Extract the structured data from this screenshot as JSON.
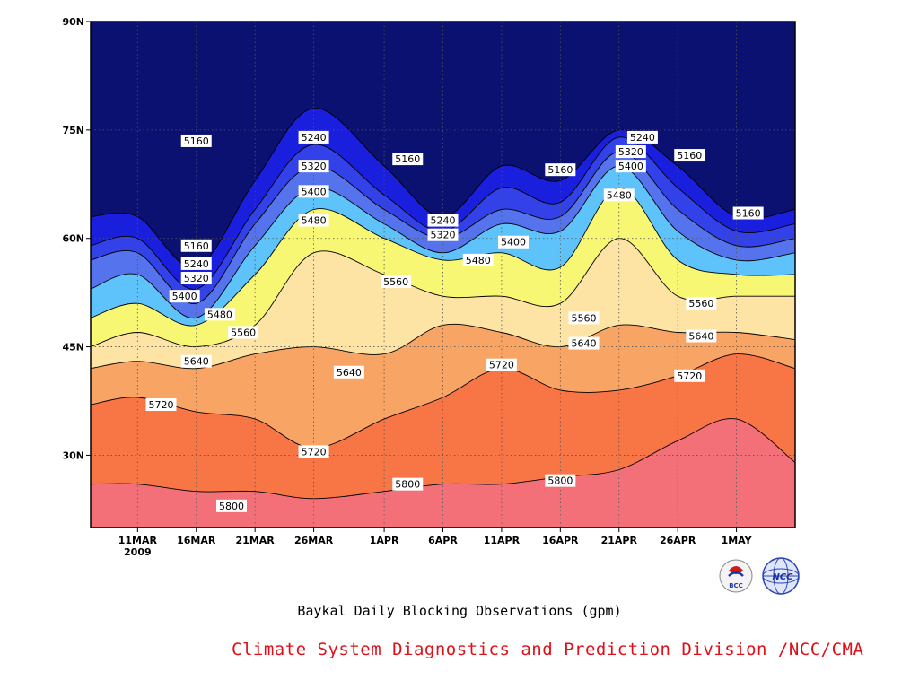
{
  "chart_data": {
    "type": "heatmap",
    "subtype": "filled-contour",
    "title": "Baykal Daily Blocking Observations (gpm)",
    "xaxis": {
      "kind": "date",
      "year": "2009",
      "start": "2009-03-07",
      "end": "2009-05-06",
      "ticks": [
        "11MAR",
        "16MAR",
        "21MAR",
        "26MAR",
        "1APR",
        "6APR",
        "11APR",
        "16APR",
        "21APR",
        "26APR",
        "1MAY"
      ]
    },
    "yaxis": {
      "range": [
        20,
        90
      ],
      "ticks": [
        "30N",
        "45N",
        "60N",
        "75N",
        "90N"
      ]
    },
    "grid": "dotted",
    "levels": [
      5160,
      5240,
      5320,
      5400,
      5480,
      5560,
      5640,
      5720,
      5800
    ],
    "colors": [
      "#0b1170",
      "#1a1fde",
      "#3342e8",
      "#5573ec",
      "#5fc3fb",
      "#f7f774",
      "#fde3a4",
      "#f8a465",
      "#f87546",
      "#f47079"
    ],
    "contour_latitudes": {
      "dates": [
        "7MAR",
        "11MAR",
        "16MAR",
        "21MAR",
        "26MAR",
        "1APR",
        "6APR",
        "11APR",
        "16APR",
        "21APR",
        "26APR",
        "1MAY",
        "6MAY"
      ],
      "5160": [
        63,
        63,
        56,
        68,
        78,
        70,
        63,
        70,
        68,
        75,
        70,
        63,
        64
      ],
      "5240": [
        59,
        60,
        53,
        64,
        73,
        66,
        61,
        67,
        65,
        74,
        67,
        61,
        62
      ],
      "5320": [
        57,
        58,
        51,
        62,
        70,
        64,
        60,
        64,
        63,
        72,
        64,
        59,
        60
      ],
      "5400": [
        53,
        55,
        49,
        59,
        67,
        62,
        58,
        62,
        61,
        70,
        61,
        57,
        58
      ],
      "5480": [
        49,
        51,
        48,
        55,
        64,
        60,
        57,
        58,
        56,
        67,
        57,
        55,
        55
      ],
      "5560": [
        45,
        47,
        45,
        48,
        58,
        55,
        52,
        52,
        51,
        60,
        52,
        52,
        52
      ],
      "5640": [
        42,
        43,
        42,
        44,
        45,
        44,
        48,
        47,
        45,
        48,
        47,
        47,
        46
      ],
      "5720": [
        37,
        38,
        36,
        35,
        31,
        35,
        38,
        42,
        39,
        39,
        41,
        44,
        42
      ],
      "5800": [
        26,
        26,
        25,
        25,
        24,
        25,
        26,
        26,
        27,
        28,
        32,
        35,
        29
      ]
    },
    "labels": [
      {
        "text": "5160",
        "date": "16MAR",
        "lat": 73.5
      },
      {
        "text": "5240",
        "date": "26MAR",
        "lat": 74
      },
      {
        "text": "5320",
        "date": "26MAR",
        "lat": 70
      },
      {
        "text": "5400",
        "date": "26MAR",
        "lat": 66.5
      },
      {
        "text": "5480",
        "date": "26MAR",
        "lat": 62.5
      },
      {
        "text": "5160",
        "date": "3APR",
        "lat": 71
      },
      {
        "text": "5240",
        "date": "6APR",
        "lat": 62.5
      },
      {
        "text": "5320",
        "date": "6APR",
        "lat": 60.5
      },
      {
        "text": "5480",
        "date": "9APR",
        "lat": 57
      },
      {
        "text": "5400",
        "date": "12APR",
        "lat": 59.5
      },
      {
        "text": "5160",
        "date": "16APR",
        "lat": 69.5
      },
      {
        "text": "5560",
        "date": "2APR",
        "lat": 54
      },
      {
        "text": "5640",
        "date": "29MAR",
        "lat": 41.5
      },
      {
        "text": "5720",
        "date": "11APR",
        "lat": 42.5
      },
      {
        "text": "5720",
        "date": "26MAR",
        "lat": 30.5
      },
      {
        "text": "5160",
        "date": "16MAR",
        "lat": 59
      },
      {
        "text": "5240",
        "date": "16MAR",
        "lat": 56.5
      },
      {
        "text": "5320",
        "date": "16MAR",
        "lat": 54.5
      },
      {
        "text": "5400",
        "date": "15MAR",
        "lat": 52
      },
      {
        "text": "5480",
        "date": "18MAR",
        "lat": 49.5
      },
      {
        "text": "5560",
        "date": "20MAR",
        "lat": 47
      },
      {
        "text": "5640",
        "date": "16MAR",
        "lat": 43
      },
      {
        "text": "5720",
        "date": "13MAR",
        "lat": 37
      },
      {
        "text": "5800",
        "date": "19MAR",
        "lat": 23
      },
      {
        "text": "5800",
        "date": "3APR",
        "lat": 26
      },
      {
        "text": "5800",
        "date": "16APR",
        "lat": 26.5
      },
      {
        "text": "5560",
        "date": "18APR",
        "lat": 49
      },
      {
        "text": "5640",
        "date": "18APR",
        "lat": 45.5
      },
      {
        "text": "5480",
        "date": "21APR",
        "lat": 66
      },
      {
        "text": "5400",
        "date": "22APR",
        "lat": 70
      },
      {
        "text": "5320",
        "date": "22APR",
        "lat": 72
      },
      {
        "text": "5240",
        "date": "23APR",
        "lat": 74
      },
      {
        "text": "5160",
        "date": "27APR",
        "lat": 71.5
      },
      {
        "text": "5560",
        "date": "28APR",
        "lat": 51
      },
      {
        "text": "5640",
        "date": "28APR",
        "lat": 46.5
      },
      {
        "text": "5720",
        "date": "27APR",
        "lat": 41
      },
      {
        "text": "5160",
        "date": "2MAY",
        "lat": 63.5
      }
    ]
  },
  "title": "Baykal Daily Blocking Observations (gpm)",
  "credit": "Climate System Diagnostics and Prediction Division /NCC/CMA",
  "logos": {
    "left_text": "BCC",
    "right_text": "NCC",
    "left_icon": "bcc-logo-icon",
    "right_icon": "ncc-globe-logo-icon"
  }
}
